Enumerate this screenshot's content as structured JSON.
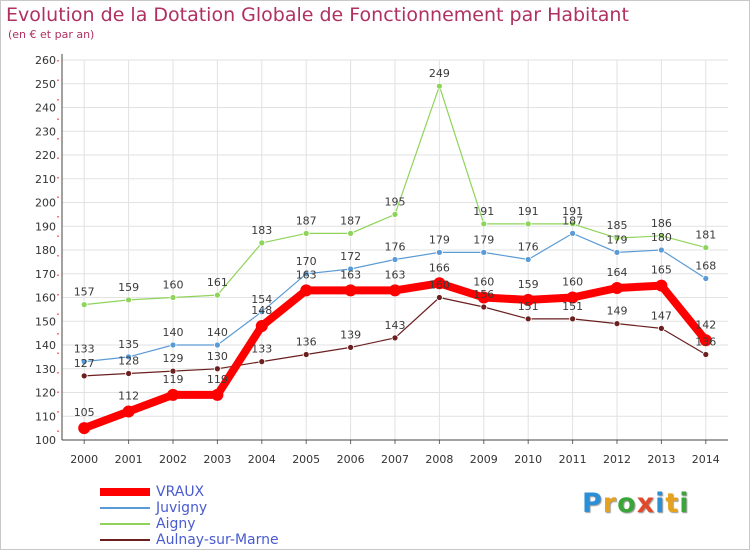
{
  "title": "Evolution de la Dotation Globale de Fonctionnement par Habitant",
  "subtitle": "(en € et par an)",
  "logo_text": "Proxiti",
  "chart_data": {
    "type": "line",
    "x": [
      "2000",
      "2001",
      "2002",
      "2003",
      "2004",
      "2005",
      "2006",
      "2007",
      "2008",
      "2009",
      "2010",
      "2011",
      "2012",
      "2013",
      "2014"
    ],
    "ylim": [
      100,
      260
    ],
    "yticks": [
      100,
      110,
      120,
      130,
      140,
      150,
      160,
      170,
      180,
      190,
      200,
      210,
      220,
      230,
      240,
      250,
      260
    ],
    "grid": true,
    "legend_position": "bottom-left",
    "series": [
      {
        "name": "Aulnay-sur-Marne",
        "color": "#6b1f1f",
        "width": 1.2,
        "radius": 3,
        "values": [
          127,
          128,
          129,
          130,
          133,
          136,
          139,
          143,
          160,
          156,
          151,
          151,
          149,
          147,
          136
        ]
      },
      {
        "name": "Aigny",
        "color": "#8fd45a",
        "width": 1.2,
        "radius": 3,
        "values": [
          157,
          159,
          160,
          161,
          183,
          187,
          187,
          195,
          249,
          191,
          191,
          191,
          185,
          186,
          181
        ]
      },
      {
        "name": "Juvigny",
        "color": "#5b9bd5",
        "width": 1.2,
        "radius": 3,
        "values": [
          133,
          135,
          140,
          140,
          154,
          170,
          172,
          176,
          179,
          179,
          176,
          187,
          179,
          180,
          168
        ]
      },
      {
        "name": "VRAUX",
        "color": "#ff0000",
        "width": 8,
        "radius": 6,
        "values": [
          105,
          112,
          119,
          119,
          148,
          163,
          163,
          163,
          166,
          160,
          159,
          160,
          164,
          165,
          142
        ]
      }
    ]
  }
}
